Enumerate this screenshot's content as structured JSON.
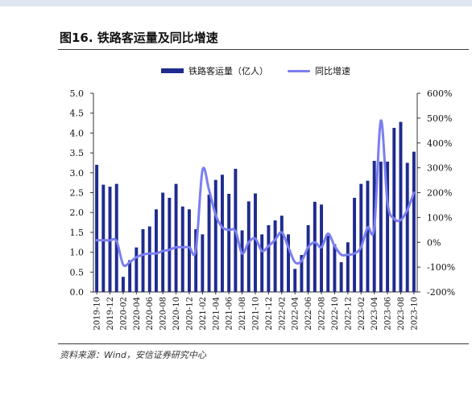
{
  "figure": {
    "title": "图16. 铁路客运量及同比增速",
    "source": "资料来源：Wind，安信证券研究中心"
  },
  "colors": {
    "bar": "#1f2b8f",
    "line": "#7b7ff0"
  },
  "chart_data": {
    "type": "bar+line",
    "categories": [
      "2019-10",
      "2019-11",
      "2019-12",
      "2020-01",
      "2020-02",
      "2020-03",
      "2020-04",
      "2020-05",
      "2020-06",
      "2020-07",
      "2020-08",
      "2020-09",
      "2020-10",
      "2020-11",
      "2020-12",
      "2021-01",
      "2021-02",
      "2021-03",
      "2021-04",
      "2021-05",
      "2021-06",
      "2021-07",
      "2021-08",
      "2021-09",
      "2021-10",
      "2021-11",
      "2021-12",
      "2022-01",
      "2022-02",
      "2022-03",
      "2022-04",
      "2022-05",
      "2022-06",
      "2022-07",
      "2022-08",
      "2022-09",
      "2022-10",
      "2022-11",
      "2022-12",
      "2023-01",
      "2023-02",
      "2023-03",
      "2023-04",
      "2023-05",
      "2023-06",
      "2023-07",
      "2023-08",
      "2023-09",
      "2023-10"
    ],
    "x_tick_labels": [
      "2019-10",
      "2019-12",
      "2020-02",
      "2020-04",
      "2020-06",
      "2020-08",
      "2020-10",
      "2020-12",
      "2021-02",
      "2021-04",
      "2021-06",
      "2021-08",
      "2021-10",
      "2021-12",
      "2022-02",
      "2022-04",
      "2022-06",
      "2022-08",
      "2022-10",
      "2022-12",
      "2023-02",
      "2023-04",
      "2023-06",
      "2023-08",
      "2023-10"
    ],
    "series": [
      {
        "name": "铁路客运量（亿人）",
        "type": "bar",
        "axis": "left",
        "values": [
          3.2,
          2.7,
          2.65,
          2.72,
          0.38,
          0.8,
          1.12,
          1.58,
          1.65,
          2.08,
          2.5,
          2.37,
          2.72,
          2.15,
          2.08,
          1.58,
          1.45,
          2.45,
          2.82,
          2.95,
          2.47,
          3.1,
          1.55,
          2.28,
          2.48,
          1.45,
          1.68,
          1.8,
          1.92,
          1.45,
          0.58,
          0.93,
          1.68,
          2.27,
          2.2,
          1.42,
          1.2,
          0.75,
          1.25,
          2.37,
          2.72,
          2.8,
          3.3,
          3.28,
          3.28,
          4.13,
          4.28,
          3.25,
          3.53
        ]
      },
      {
        "name": "同比增速",
        "type": "line",
        "axis": "right",
        "values": [
          8,
          8,
          8,
          5,
          -90,
          -80,
          -60,
          -50,
          -45,
          -45,
          -35,
          -30,
          -20,
          -20,
          -20,
          -30,
          290,
          210,
          110,
          60,
          50,
          45,
          -45,
          0,
          15,
          -35,
          -15,
          10,
          40,
          -20,
          -80,
          -75,
          -20,
          0,
          -20,
          35,
          -15,
          -50,
          -50,
          -45,
          -20,
          60,
          60,
          490,
          160,
          95,
          90,
          130,
          200
        ]
      }
    ],
    "y_left": {
      "ylim": [
        0,
        5
      ],
      "ticks": [
        "0.0",
        "0.5",
        "1.0",
        "1.5",
        "2.0",
        "2.5",
        "3.0",
        "3.5",
        "4.0",
        "4.5",
        "5.0"
      ]
    },
    "y_right": {
      "ylim": [
        -200,
        600
      ],
      "ticks": [
        "-200%",
        "-100%",
        "0%",
        "100%",
        "200%",
        "300%",
        "400%",
        "500%",
        "600%"
      ]
    },
    "legend": "top-center",
    "grid": false
  }
}
